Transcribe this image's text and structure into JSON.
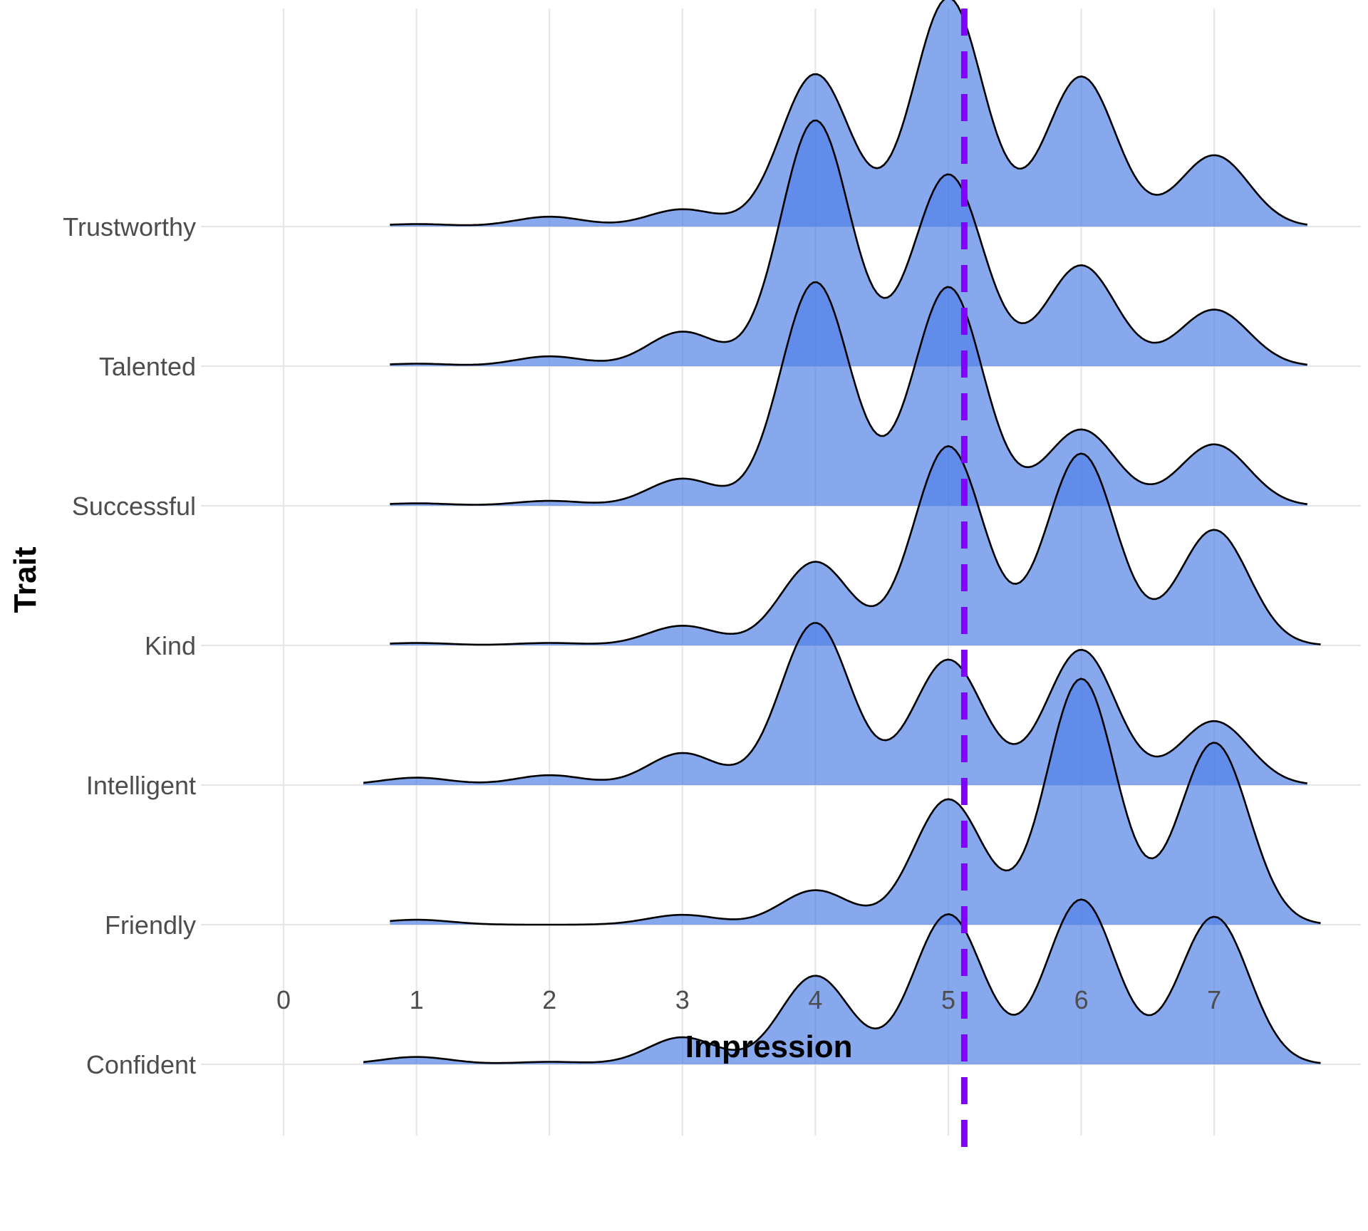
{
  "chart_data": {
    "type": "ridgeline",
    "xlabel": "Impression",
    "ylabel": "Trait",
    "xlim": [
      -0.1,
      7.9
    ],
    "x_ticks": [
      0,
      1,
      2,
      3,
      4,
      5,
      6,
      7
    ],
    "grid": true,
    "fill_color": "#4f7fe6",
    "fill_opacity": 0.68,
    "reference_line": {
      "x": 5.12,
      "style": "dashed",
      "color": "#7f00ff"
    },
    "categories": [
      "Confident",
      "Friendly",
      "Intelligent",
      "Kind",
      "Successful",
      "Talented",
      "Trustworthy"
    ],
    "series": [
      {
        "name": "Confident",
        "range": [
          0.6,
          7.8
        ],
        "peaks": [
          [
            1,
            0.03
          ],
          [
            2,
            0.01
          ],
          [
            3,
            0.11
          ],
          [
            4,
            0.36
          ],
          [
            5,
            0.61
          ],
          [
            6,
            0.67
          ],
          [
            7,
            0.6
          ]
        ]
      },
      {
        "name": "Friendly",
        "range": [
          0.8,
          7.8
        ],
        "peaks": [
          [
            1,
            0.02
          ],
          [
            3,
            0.04
          ],
          [
            4,
            0.14
          ],
          [
            5,
            0.51
          ],
          [
            6,
            1.0
          ],
          [
            7,
            0.74
          ]
        ]
      },
      {
        "name": "Intelligent",
        "range": [
          0.6,
          7.7
        ],
        "peaks": [
          [
            1,
            0.03
          ],
          [
            2,
            0.04
          ],
          [
            3,
            0.13
          ],
          [
            4,
            0.66
          ],
          [
            5,
            0.51
          ],
          [
            6,
            0.55
          ],
          [
            7,
            0.26
          ]
        ]
      },
      {
        "name": "Kind",
        "range": [
          0.8,
          7.8
        ],
        "peaks": [
          [
            1,
            0.01
          ],
          [
            2,
            0.01
          ],
          [
            3,
            0.08
          ],
          [
            4,
            0.34
          ],
          [
            5,
            0.81
          ],
          [
            6,
            0.78
          ],
          [
            7,
            0.47
          ]
        ]
      },
      {
        "name": "Successful",
        "range": [
          0.8,
          7.7
        ],
        "peaks": [
          [
            1,
            0.01
          ],
          [
            2,
            0.02
          ],
          [
            3,
            0.11
          ],
          [
            4,
            0.91
          ],
          [
            5,
            0.89
          ],
          [
            6,
            0.31
          ],
          [
            7,
            0.25
          ]
        ]
      },
      {
        "name": "Talented",
        "range": [
          0.8,
          7.7
        ],
        "peaks": [
          [
            1,
            0.01
          ],
          [
            2,
            0.04
          ],
          [
            3,
            0.14
          ],
          [
            4,
            1.0
          ],
          [
            5,
            0.78
          ],
          [
            6,
            0.41
          ],
          [
            7,
            0.23
          ]
        ]
      },
      {
        "name": "Trustworthy",
        "range": [
          0.8,
          7.7
        ],
        "peaks": [
          [
            1,
            0.01
          ],
          [
            2,
            0.04
          ],
          [
            3,
            0.07
          ],
          [
            4,
            0.62
          ],
          [
            5,
            0.93
          ],
          [
            6,
            0.61
          ],
          [
            7,
            0.29
          ]
        ]
      }
    ]
  }
}
